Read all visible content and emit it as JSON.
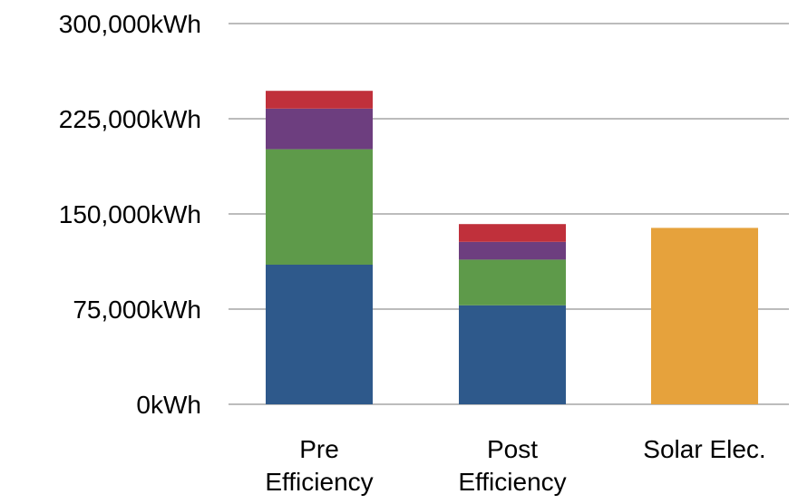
{
  "chart_data": {
    "type": "bar",
    "stacked": true,
    "categories": [
      [
        "Pre",
        "Efficiency"
      ],
      [
        "Post",
        "Efficiency"
      ],
      [
        "Solar Elec."
      ]
    ],
    "series": [
      {
        "color": "#2e598b",
        "values": [
          110000,
          78000,
          0
        ]
      },
      {
        "color": "#5e9a4a",
        "values": [
          91000,
          36000,
          0
        ]
      },
      {
        "color": "#6d3e7f",
        "values": [
          32000,
          14000,
          0
        ]
      },
      {
        "color": "#c0303b",
        "values": [
          14000,
          14000,
          0
        ]
      },
      {
        "color": "#e6a23c",
        "values": [
          0,
          0,
          139000
        ]
      }
    ],
    "yticks": [
      "0kWh",
      "75,000kWh",
      "150,000kWh",
      "225,000kWh",
      "300,000kWh"
    ],
    "ytick_values": [
      0,
      75000,
      150000,
      225000,
      300000
    ],
    "ylim": [
      0,
      300000
    ],
    "grid": true,
    "legend": "none",
    "title": "",
    "xlabel": "",
    "ylabel": ""
  }
}
